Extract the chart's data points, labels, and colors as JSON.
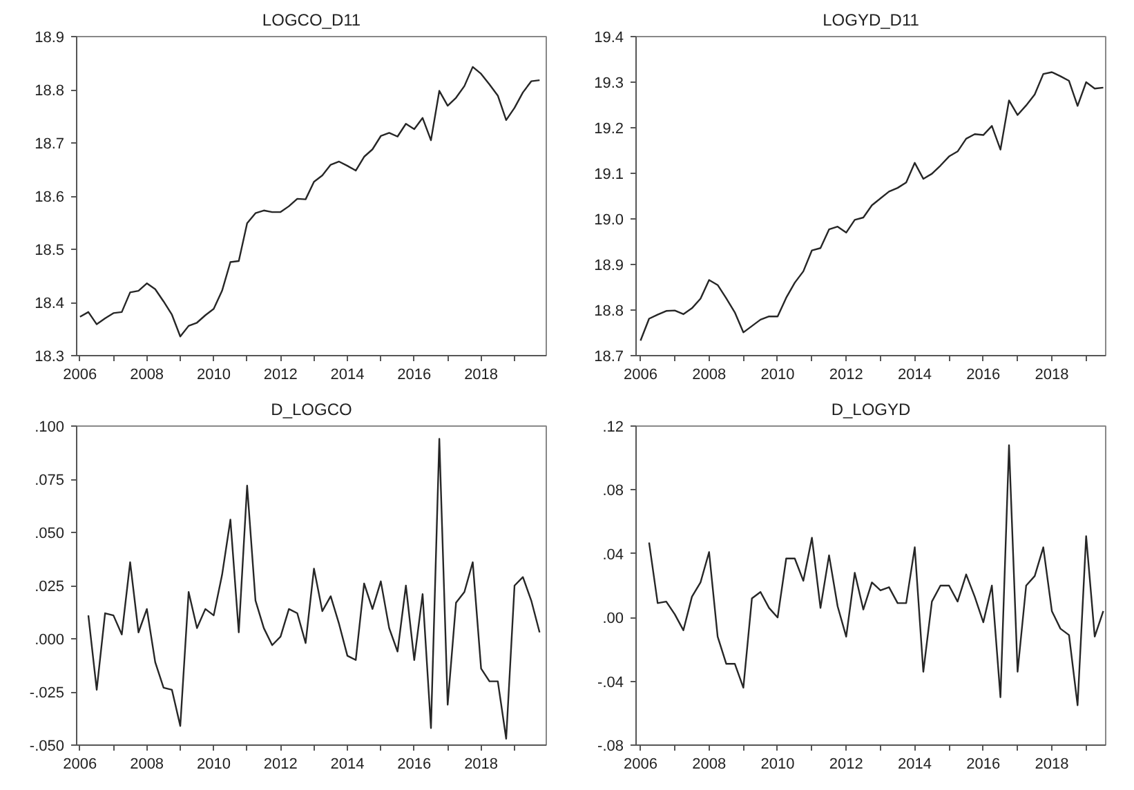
{
  "chart_data": [
    {
      "type": "line",
      "title": "LOGCO_D11",
      "x": [
        2006.0,
        2006.25,
        2006.5,
        2006.75,
        2007.0,
        2007.25,
        2007.5,
        2007.75,
        2008.0,
        2008.25,
        2008.5,
        2008.75,
        2009.0,
        2009.25,
        2009.5,
        2009.75,
        2010.0,
        2010.25,
        2010.5,
        2010.75,
        2011.0,
        2011.25,
        2011.5,
        2011.75,
        2012.0,
        2012.25,
        2012.5,
        2012.75,
        2013.0,
        2013.25,
        2013.5,
        2013.75,
        2014.0,
        2014.25,
        2014.5,
        2014.75,
        2015.0,
        2015.25,
        2015.5,
        2015.75,
        2016.0,
        2016.25,
        2016.5,
        2016.75,
        2017.0,
        2017.25,
        2017.5,
        2017.75,
        2018.0,
        2018.25,
        2018.5,
        2018.75,
        2019.0,
        2019.25,
        2019.5,
        2019.75
      ],
      "series": [
        {
          "color": "#262626",
          "values": [
            18.373,
            18.382,
            18.359,
            18.37,
            18.38,
            18.382,
            18.419,
            18.422,
            18.436,
            18.425,
            18.402,
            18.377,
            18.336,
            18.356,
            18.362,
            18.376,
            18.388,
            18.422,
            18.476,
            18.478,
            18.549,
            18.568,
            18.573,
            18.57,
            18.57,
            18.581,
            18.595,
            18.594,
            18.627,
            18.639,
            18.659,
            18.665,
            18.657,
            18.648,
            18.674,
            18.688,
            18.713,
            18.719,
            18.712,
            18.736,
            18.726,
            18.747,
            18.705,
            18.798,
            18.77,
            18.785,
            18.807,
            18.843,
            18.83,
            18.81,
            18.789,
            18.743,
            18.766,
            18.795,
            18.816,
            18.818
          ]
        }
      ],
      "xlim": [
        2005.9,
        2019.95
      ],
      "xticks": [
        2006,
        {
          "value": 2007,
          "label": null
        },
        2008,
        {
          "value": 2009,
          "label": null
        },
        2010,
        {
          "value": 2011,
          "label": null
        },
        2012,
        {
          "value": 2013,
          "label": null
        },
        2014,
        {
          "value": 2015,
          "label": null
        },
        2016,
        {
          "value": 2017,
          "label": null
        },
        2018,
        {
          "value": 2019,
          "label": null
        }
      ],
      "ylim": [
        18.3,
        18.9
      ],
      "yticks": [
        18.3,
        18.4,
        18.5,
        18.6,
        18.7,
        18.8,
        18.9
      ]
    },
    {
      "type": "line",
      "title": "LOGYD_D11",
      "x": [
        2006.0,
        2006.25,
        2006.5,
        2006.75,
        2007.0,
        2007.25,
        2007.5,
        2007.75,
        2008.0,
        2008.25,
        2008.5,
        2008.75,
        2009.0,
        2009.25,
        2009.5,
        2009.75,
        2010.0,
        2010.25,
        2010.5,
        2010.75,
        2011.0,
        2011.25,
        2011.5,
        2011.75,
        2012.0,
        2012.25,
        2012.5,
        2012.75,
        2013.0,
        2013.25,
        2013.5,
        2013.75,
        2014.0,
        2014.25,
        2014.5,
        2014.75,
        2015.0,
        2015.25,
        2015.5,
        2015.75,
        2016.0,
        2016.25,
        2016.5,
        2016.75,
        2017.0,
        2017.25,
        2017.5,
        2017.75,
        2018.0,
        2018.25,
        2018.5,
        2018.75,
        2019.0,
        2019.25,
        2019.5
      ],
      "series": [
        {
          "color": "#262626",
          "values": [
            18.733,
            18.781,
            18.79,
            18.798,
            18.799,
            18.791,
            18.804,
            18.825,
            18.866,
            18.855,
            18.826,
            18.795,
            18.751,
            18.765,
            18.779,
            18.786,
            18.786,
            18.827,
            18.86,
            18.885,
            18.931,
            18.936,
            18.977,
            18.983,
            18.97,
            18.998,
            19.003,
            19.03,
            19.045,
            19.06,
            19.068,
            19.08,
            19.123,
            19.088,
            19.099,
            19.117,
            19.137,
            19.148,
            19.176,
            19.186,
            19.184,
            19.204,
            19.152,
            19.26,
            19.228,
            19.249,
            19.273,
            19.318,
            19.322,
            19.313,
            19.303,
            19.248,
            19.3,
            19.286,
            19.288
          ]
        }
      ],
      "xlim": [
        2005.87,
        2019.57
      ],
      "xticks": [
        2006,
        {
          "value": 2007,
          "label": null
        },
        2008,
        {
          "value": 2009,
          "label": null
        },
        2010,
        {
          "value": 2011,
          "label": null
        },
        2012,
        {
          "value": 2013,
          "label": null
        },
        2014,
        {
          "value": 2015,
          "label": null
        },
        2016,
        {
          "value": 2017,
          "label": null
        },
        2018,
        {
          "value": 2019,
          "label": null
        }
      ],
      "ylim": [
        18.7,
        19.4
      ],
      "yticks": [
        18.7,
        18.8,
        18.9,
        {
          "value": 19,
          "label": "19.0"
        },
        19.1,
        19.2,
        19.3,
        19.4
      ]
    },
    {
      "type": "line",
      "title": "D_LOGCO",
      "x": [
        2006.25,
        2006.5,
        2006.75,
        2007.0,
        2007.25,
        2007.5,
        2007.75,
        2008.0,
        2008.25,
        2008.5,
        2008.75,
        2009.0,
        2009.25,
        2009.5,
        2009.75,
        2010.0,
        2010.25,
        2010.5,
        2010.75,
        2011.0,
        2011.25,
        2011.5,
        2011.75,
        2012.0,
        2012.25,
        2012.5,
        2012.75,
        2013.0,
        2013.25,
        2013.5,
        2013.75,
        2014.0,
        2014.25,
        2014.5,
        2014.75,
        2015.0,
        2015.25,
        2015.5,
        2015.75,
        2016.0,
        2016.25,
        2016.5,
        2016.75,
        2017.0,
        2017.25,
        2017.5,
        2017.75,
        2018.0,
        2018.25,
        2018.5,
        2018.75,
        2019.0,
        2019.25,
        2019.5,
        2019.75
      ],
      "series": [
        {
          "color": "#262626",
          "values": [
            0.011,
            -0.024,
            0.012,
            0.011,
            0.002,
            0.036,
            0.003,
            0.014,
            -0.011,
            -0.023,
            -0.024,
            -0.041,
            0.022,
            0.005,
            0.014,
            0.011,
            0.03,
            0.056,
            0.003,
            0.072,
            0.018,
            0.005,
            -0.003,
            0.001,
            0.014,
            0.012,
            -0.002,
            0.033,
            0.013,
            0.02,
            0.007,
            -0.008,
            -0.01,
            0.026,
            0.014,
            0.027,
            0.005,
            -0.006,
            0.025,
            -0.01,
            0.021,
            -0.042,
            0.094,
            -0.031,
            0.017,
            0.022,
            0.036,
            -0.014,
            -0.02,
            -0.02,
            -0.047,
            0.025,
            0.029,
            0.018,
            0.003
          ]
        }
      ],
      "xlim": [
        2005.9,
        2019.95
      ],
      "xticks": [
        2006,
        {
          "value": 2007,
          "label": null
        },
        2008,
        {
          "value": 2009,
          "label": null
        },
        2010,
        {
          "value": 2011,
          "label": null
        },
        2012,
        {
          "value": 2013,
          "label": null
        },
        2014,
        {
          "value": 2015,
          "label": null
        },
        2016,
        {
          "value": 2017,
          "label": null
        },
        2018,
        {
          "value": 2019,
          "label": null
        }
      ],
      "ylim": [
        -0.05,
        0.1
      ],
      "yticks": [
        {
          "value": -0.05,
          "label": "-.050"
        },
        {
          "value": -0.025,
          "label": "-.025"
        },
        {
          "value": 0,
          "label": ".000"
        },
        {
          "value": 0.025,
          "label": ".025"
        },
        {
          "value": 0.05,
          "label": ".050"
        },
        {
          "value": 0.075,
          "label": ".075"
        },
        {
          "value": 0.1,
          "label": ".100"
        }
      ]
    },
    {
      "type": "line",
      "title": "D_LOGYD",
      "x": [
        2006.25,
        2006.5,
        2006.75,
        2007.0,
        2007.25,
        2007.5,
        2007.75,
        2008.0,
        2008.25,
        2008.5,
        2008.75,
        2009.0,
        2009.25,
        2009.5,
        2009.75,
        2010.0,
        2010.25,
        2010.5,
        2010.75,
        2011.0,
        2011.25,
        2011.5,
        2011.75,
        2012.0,
        2012.25,
        2012.5,
        2012.75,
        2013.0,
        2013.25,
        2013.5,
        2013.75,
        2014.0,
        2014.25,
        2014.5,
        2014.75,
        2015.0,
        2015.25,
        2015.5,
        2015.75,
        2016.0,
        2016.25,
        2016.5,
        2016.75,
        2017.0,
        2017.25,
        2017.5,
        2017.75,
        2018.0,
        2018.25,
        2018.5,
        2018.75,
        2019.0,
        2019.25,
        2019.5
      ],
      "series": [
        {
          "color": "#262626",
          "values": [
            0.047,
            0.009,
            0.01,
            0.002,
            -0.008,
            0.013,
            0.022,
            0.041,
            -0.012,
            -0.029,
            -0.029,
            -0.044,
            0.012,
            0.016,
            0.006,
            0.0,
            0.037,
            0.037,
            0.023,
            0.05,
            0.006,
            0.039,
            0.007,
            -0.012,
            0.028,
            0.005,
            0.022,
            0.017,
            0.019,
            0.009,
            0.009,
            0.044,
            -0.034,
            0.01,
            0.02,
            0.02,
            0.01,
            0.027,
            0.013,
            -0.003,
            0.02,
            -0.05,
            0.108,
            -0.034,
            0.02,
            0.026,
            0.044,
            0.004,
            -0.007,
            -0.011,
            -0.055,
            0.051,
            -0.012,
            0.004
          ]
        }
      ],
      "xlim": [
        2005.87,
        2019.57
      ],
      "xticks": [
        2006,
        {
          "value": 2007,
          "label": null
        },
        2008,
        {
          "value": 2009,
          "label": null
        },
        2010,
        {
          "value": 2011,
          "label": null
        },
        2012,
        {
          "value": 2013,
          "label": null
        },
        2014,
        {
          "value": 2015,
          "label": null
        },
        2016,
        {
          "value": 2017,
          "label": null
        },
        2018,
        {
          "value": 2019,
          "label": null
        }
      ],
      "ylim": [
        -0.08,
        0.12
      ],
      "yticks": [
        {
          "value": -0.08,
          "label": "-.08"
        },
        {
          "value": -0.04,
          "label": "-.04"
        },
        {
          "value": 0,
          "label": ".00"
        },
        {
          "value": 0.04,
          "label": ".04"
        },
        {
          "value": 0.08,
          "label": ".08"
        },
        {
          "value": 0.12,
          "label": ".12"
        }
      ]
    }
  ]
}
